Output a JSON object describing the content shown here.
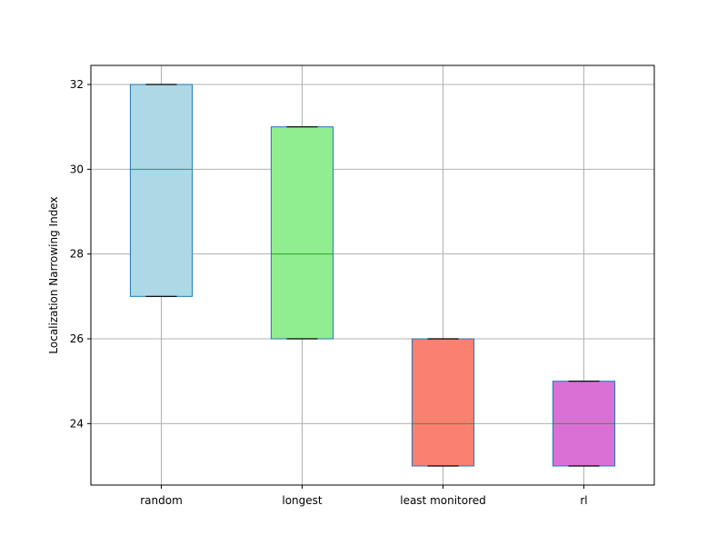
{
  "chart_data": {
    "type": "box",
    "ylabel": "Localization Narrowing Index",
    "xlabel": "",
    "title": "",
    "ylim": [
      22.55,
      32.45
    ],
    "yticks": [
      24,
      26,
      28,
      30,
      32
    ],
    "ytick_labels": [
      "24",
      "26",
      "28",
      "30",
      "32"
    ],
    "grid": true,
    "categories": [
      "random",
      "longest",
      "least monitored",
      "rl"
    ],
    "boxes": [
      {
        "category": "random",
        "whisker_low": 27,
        "q1": 27,
        "median": 30,
        "q3": 32,
        "whisker_high": 32,
        "color": "#add8e6"
      },
      {
        "category": "longest",
        "whisker_low": 26,
        "q1": 26,
        "median": 28,
        "q3": 31,
        "whisker_high": 31,
        "color": "#90ee90"
      },
      {
        "category": "least monitored",
        "whisker_low": 23,
        "q1": 23,
        "median": 24,
        "q3": 26,
        "whisker_high": 26,
        "color": "#fa8072"
      },
      {
        "category": "rl",
        "whisker_low": 23,
        "q1": 23,
        "median": 24,
        "q3": 25,
        "whisker_high": 25,
        "color": "#da70d6"
      }
    ],
    "box_edge_color": "#1f77b4",
    "median_color": "#2ca02c",
    "cap_color": "#000000",
    "grid_color": "#b0b0b0"
  }
}
